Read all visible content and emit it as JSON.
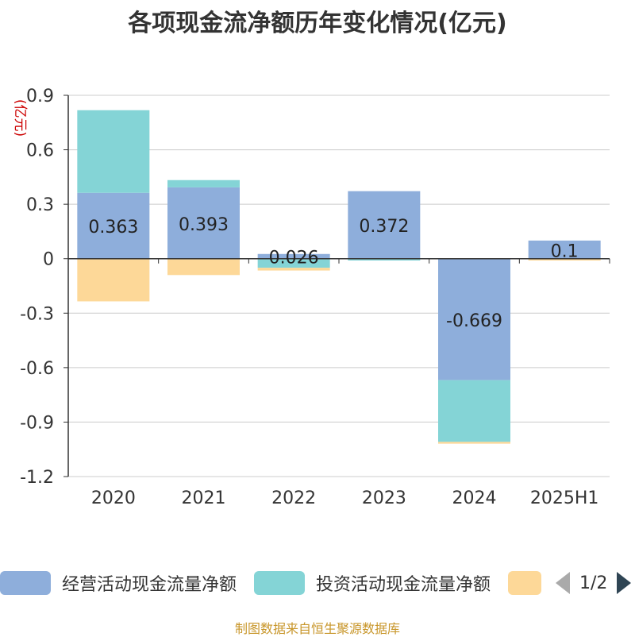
{
  "title": "各项现金流净额历年变化情况(亿元)",
  "unit_label": "(亿元)",
  "footer": "制图数据来自恒生聚源数据库",
  "legend": {
    "items": [
      {
        "label": "经营活动现金流量净额",
        "color": "#8eaedb"
      },
      {
        "label": "投资活动现金流量净额",
        "color": "#84d4d6"
      },
      {
        "label": "",
        "color": "#fdd898"
      }
    ],
    "page": "1/2"
  },
  "chart_data": {
    "type": "bar",
    "stacked": true,
    "categories": [
      "2020",
      "2021",
      "2022",
      "2023",
      "2024",
      "2025H1"
    ],
    "series": [
      {
        "name": "经营活动现金流量净额",
        "color": "#8eaedb",
        "values": [
          0.363,
          0.393,
          0.026,
          0.372,
          -0.669,
          0.1
        ],
        "labels": [
          "0.363",
          "0.393",
          "0.026",
          "0.372",
          "-0.669",
          "0.1"
        ]
      },
      {
        "name": "投资活动现金流量净额",
        "color": "#84d4d6",
        "values": [
          0.455,
          0.04,
          -0.05,
          -0.01,
          -0.34,
          0.0
        ]
      },
      {
        "name": "",
        "color": "#fdd898",
        "values": [
          -0.235,
          -0.09,
          -0.015,
          0.0,
          -0.01,
          -0.01
        ]
      }
    ],
    "ylim": [
      -1.2,
      0.9
    ],
    "yticks": [
      "0.9",
      "0.6",
      "0.3",
      "0",
      "-0.3",
      "-0.6",
      "-0.9",
      "-1.2"
    ],
    "ytick_values": [
      0.9,
      0.6,
      0.3,
      0,
      -0.3,
      -0.6,
      -0.9,
      -1.2
    ],
    "grid": true
  }
}
